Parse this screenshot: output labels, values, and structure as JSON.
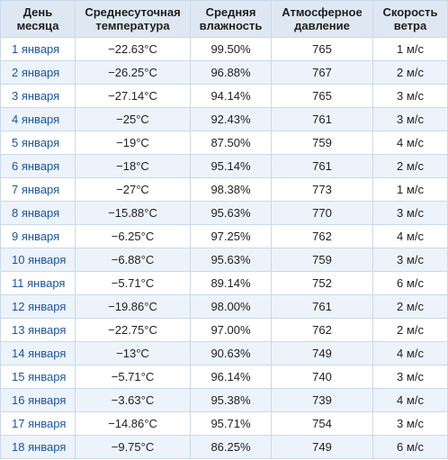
{
  "table": {
    "headers": [
      [
        "День",
        "месяца"
      ],
      [
        "Среднесуточная",
        "температура"
      ],
      [
        "Средняя",
        "влажность"
      ],
      [
        "Атмосферное",
        "давление"
      ],
      [
        "Скорость",
        "ветра"
      ]
    ],
    "rows": [
      {
        "day": "1 января",
        "temp": "−22.63°C",
        "humidity": "99.50%",
        "pressure": "765",
        "wind": "1 м/с"
      },
      {
        "day": "2 января",
        "temp": "−26.25°C",
        "humidity": "96.88%",
        "pressure": "767",
        "wind": "2 м/с"
      },
      {
        "day": "3 января",
        "temp": "−27.14°C",
        "humidity": "94.14%",
        "pressure": "765",
        "wind": "3 м/с"
      },
      {
        "day": "4 января",
        "temp": "−25°C",
        "humidity": "92.43%",
        "pressure": "761",
        "wind": "3 м/с"
      },
      {
        "day": "5 января",
        "temp": "−19°C",
        "humidity": "87.50%",
        "pressure": "759",
        "wind": "4 м/с"
      },
      {
        "day": "6 января",
        "temp": "−18°C",
        "humidity": "95.14%",
        "pressure": "761",
        "wind": "2 м/с"
      },
      {
        "day": "7 января",
        "temp": "−27°C",
        "humidity": "98.38%",
        "pressure": "773",
        "wind": "1 м/с"
      },
      {
        "day": "8 января",
        "temp": "−15.88°C",
        "humidity": "95.63%",
        "pressure": "770",
        "wind": "3 м/с"
      },
      {
        "day": "9 января",
        "temp": "−6.25°C",
        "humidity": "97.25%",
        "pressure": "762",
        "wind": "4 м/с"
      },
      {
        "day": "10 января",
        "temp": "−6.88°C",
        "humidity": "95.63%",
        "pressure": "759",
        "wind": "3 м/с"
      },
      {
        "day": "11 января",
        "temp": "−5.71°C",
        "humidity": "89.14%",
        "pressure": "752",
        "wind": "6 м/с"
      },
      {
        "day": "12 января",
        "temp": "−19.86°C",
        "humidity": "98.00%",
        "pressure": "761",
        "wind": "2 м/с"
      },
      {
        "day": "13 января",
        "temp": "−22.75°C",
        "humidity": "97.00%",
        "pressure": "762",
        "wind": "2 м/с"
      },
      {
        "day": "14 января",
        "temp": "−13°C",
        "humidity": "90.63%",
        "pressure": "749",
        "wind": "4 м/с"
      },
      {
        "day": "15 января",
        "temp": "−5.71°C",
        "humidity": "96.14%",
        "pressure": "740",
        "wind": "3 м/с"
      },
      {
        "day": "16 января",
        "temp": "−3.63°C",
        "humidity": "95.38%",
        "pressure": "739",
        "wind": "4 м/с"
      },
      {
        "day": "17 января",
        "temp": "−14.86°C",
        "humidity": "95.71%",
        "pressure": "754",
        "wind": "3 м/с"
      },
      {
        "day": "18 января",
        "temp": "−9.75°C",
        "humidity": "86.25%",
        "pressure": "749",
        "wind": "6 м/с"
      }
    ]
  },
  "colors": {
    "header_bg": "#dfe8f2",
    "row_alt_bg": "#ecf3fa",
    "border": "#c9d9ea",
    "link": "#1a55a5"
  }
}
